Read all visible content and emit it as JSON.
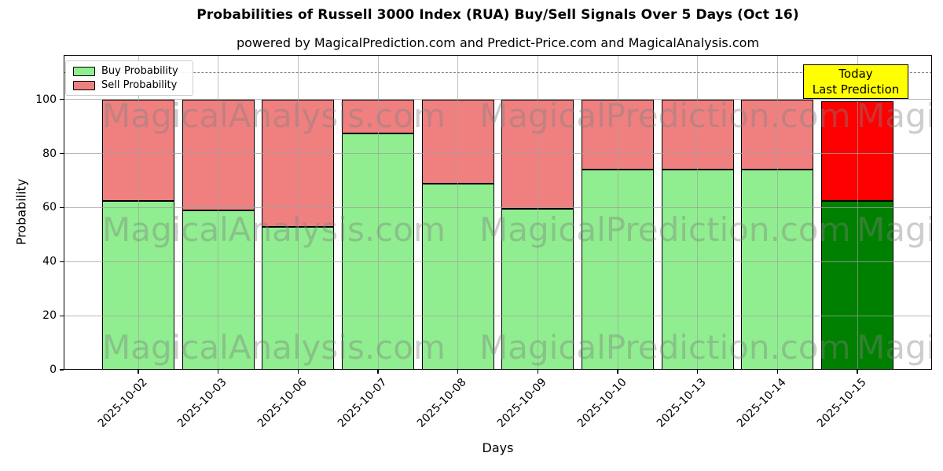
{
  "chart_data": {
    "type": "bar",
    "stacked": true,
    "title": "Probabilities of Russell 3000 Index (RUA) Buy/Sell Signals Over 5 Days (Oct 16)",
    "subtitle": "powered by MagicalPrediction.com and Predict-Price.com and MagicalAnalysis.com",
    "xlabel": "Days",
    "ylabel": "Probability",
    "ylim": [
      0,
      116.5
    ],
    "yticks": [
      0,
      20,
      40,
      60,
      80,
      100
    ],
    "grid": true,
    "dashed_guideline_y": 110,
    "categories": [
      "2025-10-02",
      "2025-10-03",
      "2025-10-06",
      "2025-10-07",
      "2025-10-08",
      "2025-10-09",
      "2025-10-10",
      "2025-10-13",
      "2025-10-14",
      "2025-10-15"
    ],
    "series": [
      {
        "name": "Buy Probability",
        "color": "#90EE90",
        "edge_color": "#000000",
        "values": [
          62.5,
          59,
          53,
          87.5,
          69,
          59.5,
          74,
          74,
          74,
          62.5
        ]
      },
      {
        "name": "Sell Probability",
        "color": "#F08080",
        "edge_color": "#000000",
        "values": [
          37.5,
          41,
          47,
          12.5,
          31,
          40.5,
          26,
          26,
          26,
          37
        ]
      }
    ],
    "today_bar": {
      "index": 9,
      "buy_color": "#008000",
      "sell_color": "#FF0000"
    },
    "legend": {
      "position": "upper-left",
      "entries": [
        "Buy Probability",
        "Sell Probability"
      ]
    },
    "annotation": {
      "line1": "Today",
      "line2": "Last Prediction",
      "bg_color": "#FFFF00",
      "border_color": "#000000"
    },
    "watermark": {
      "texts": [
        "MagicalAnalysis.com",
        "MagicalPrediction.com"
      ],
      "color_rgba": "rgba(128,128,128,0.40)"
    }
  }
}
